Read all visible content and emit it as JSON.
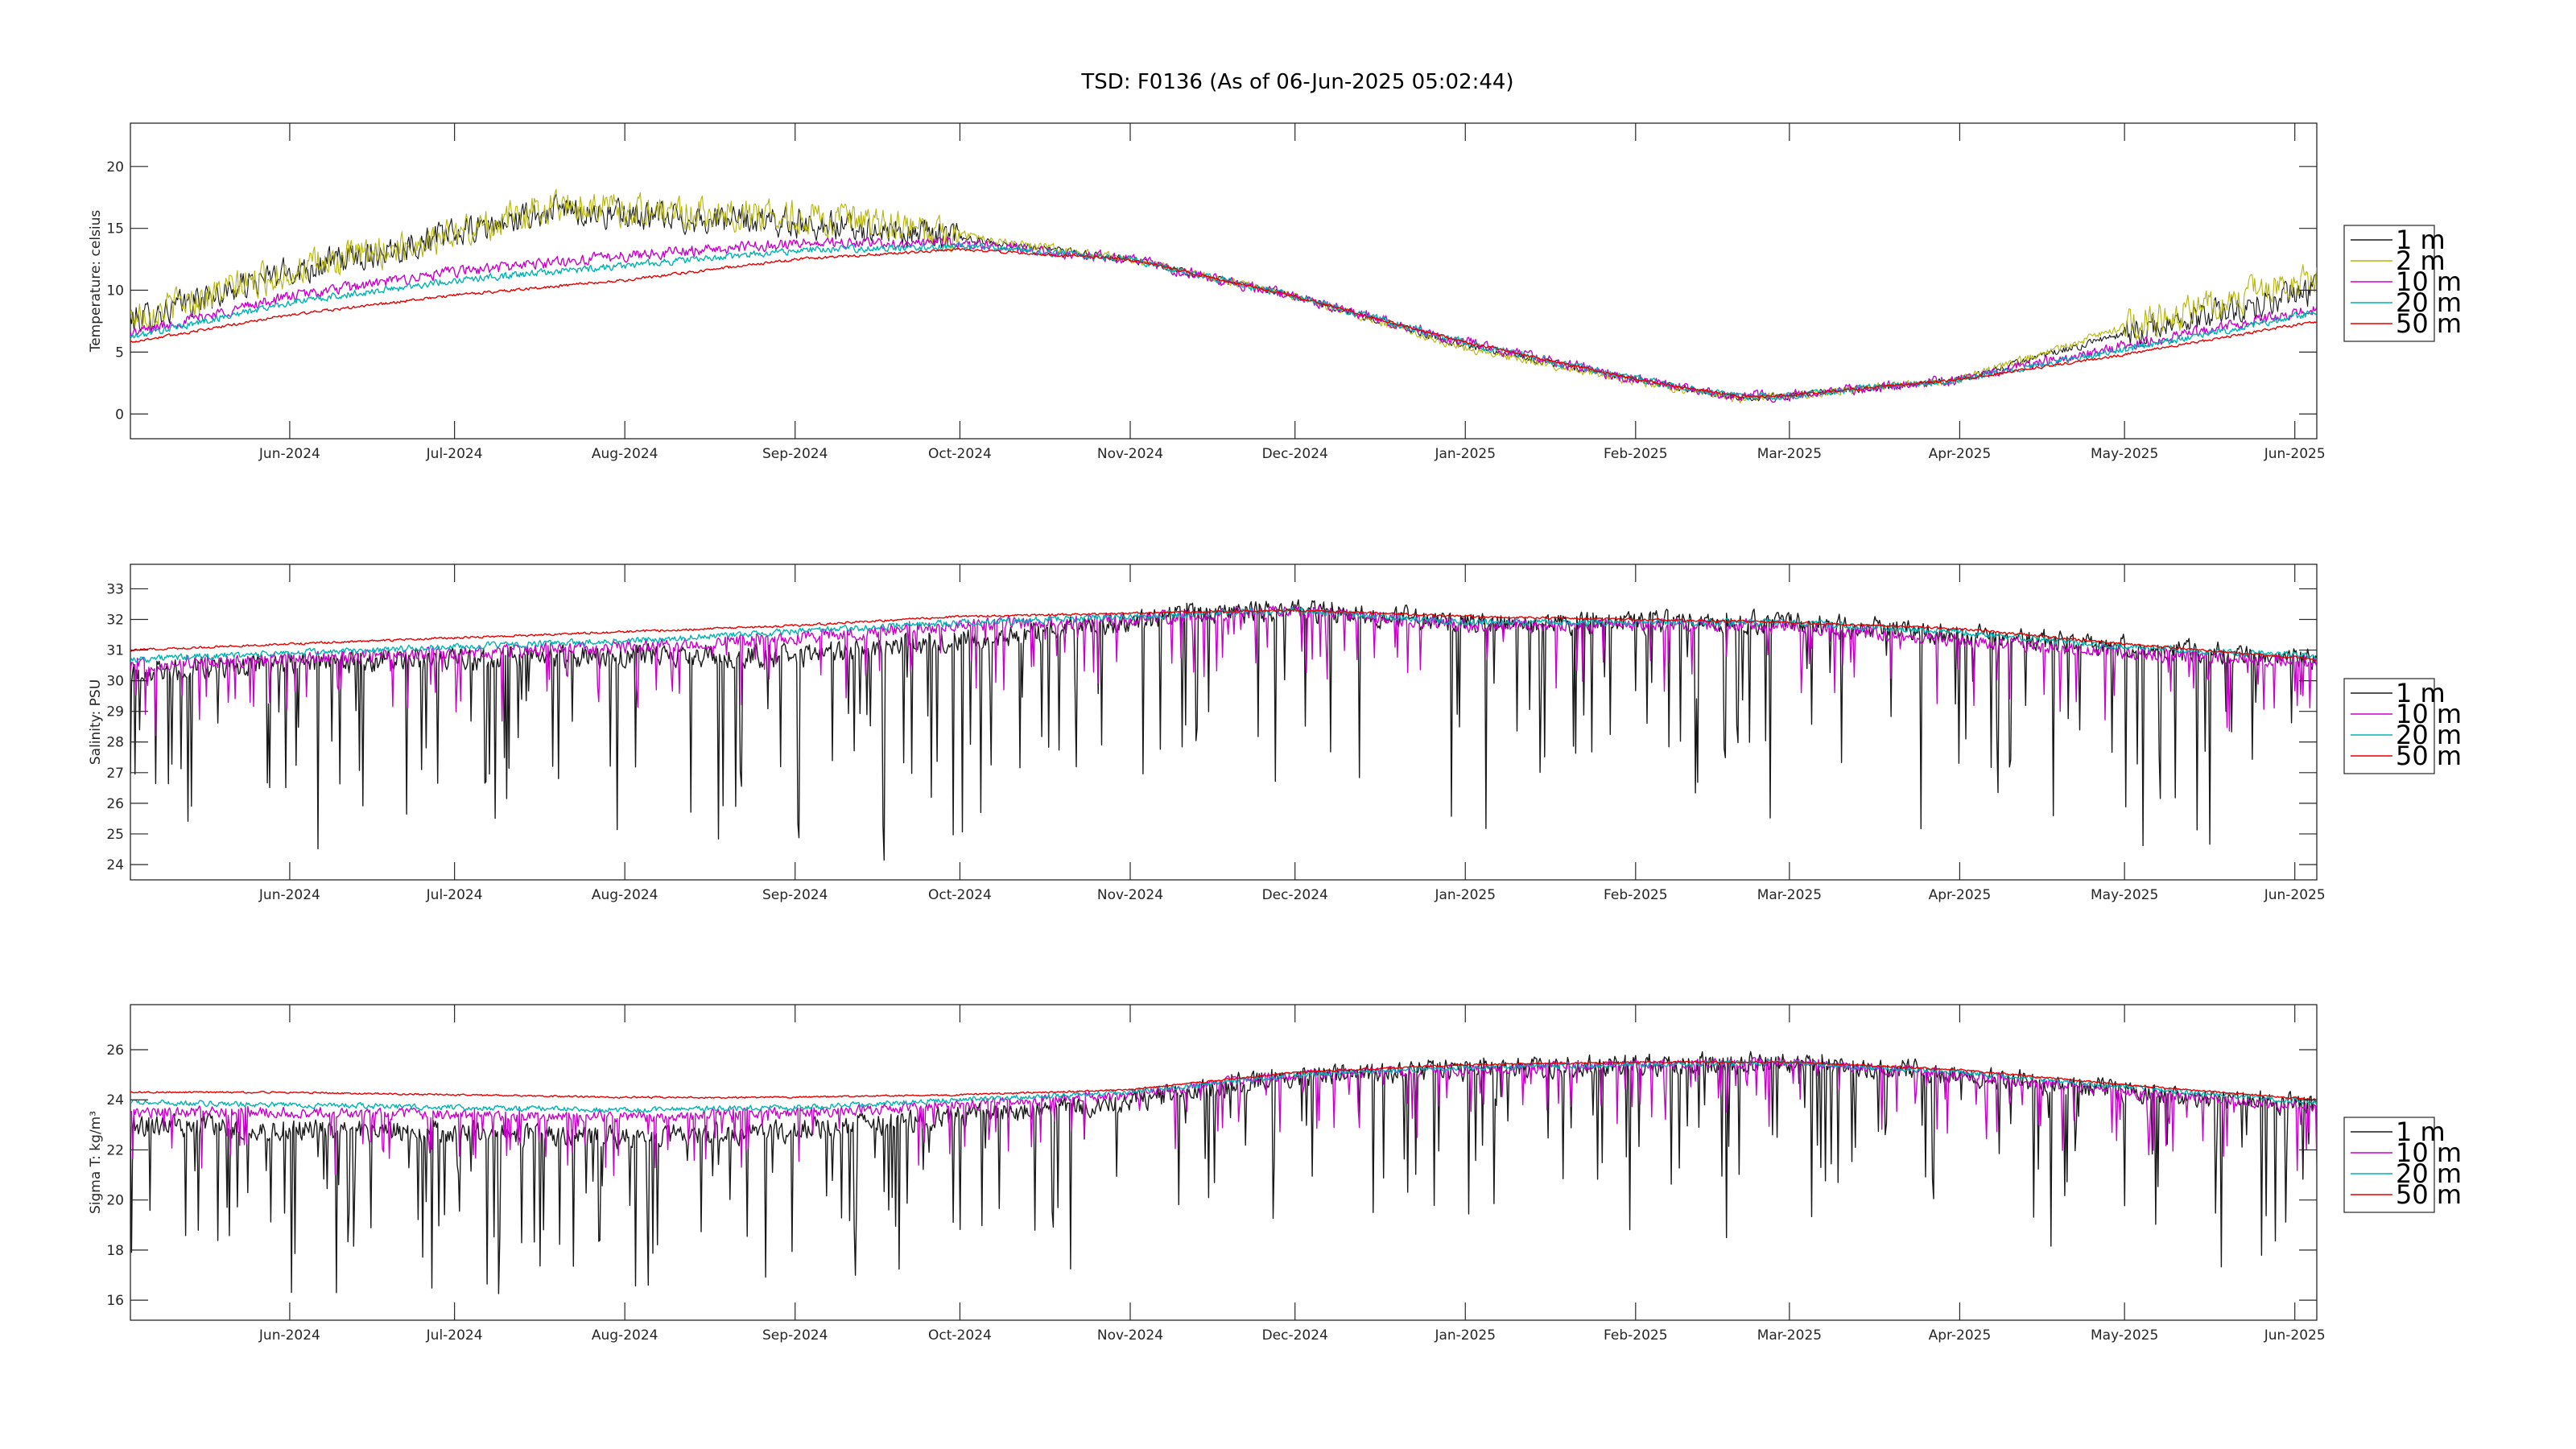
{
  "figure": {
    "title": "TSD: F0136 (As of 06-Jun-2025 05:02:44)"
  },
  "chart_data": [
    {
      "type": "line",
      "ylabel": "Temperature:  celsius",
      "ylim": [
        -2,
        23.5
      ],
      "yticks": [
        0,
        5,
        10,
        15,
        20
      ],
      "xlim": [
        "2024-05-03",
        "2025-06-05"
      ],
      "xtick_dates": [
        "2024-06-01",
        "2024-07-01",
        "2024-08-01",
        "2024-09-01",
        "2024-10-01",
        "2024-11-01",
        "2024-12-01",
        "2025-01-01",
        "2025-02-01",
        "2025-03-01",
        "2025-04-01",
        "2025-05-01",
        "2025-06-01"
      ],
      "xtick_labels": [
        "Jun-2024",
        "Jul-2024",
        "Aug-2024",
        "Sep-2024",
        "Oct-2024",
        "Nov-2024",
        "Dec-2024",
        "Jan-2025",
        "Feb-2025",
        "Mar-2025",
        "Apr-2025",
        "May-2025",
        "Jun-2025"
      ],
      "grid": false,
      "legend_placement": "outside-right",
      "series": [
        {
          "name": "1 m",
          "color": "#1a1a1a",
          "noise": 1.6,
          "dips": false,
          "x": [
            "2024-05-03",
            "2024-06-01",
            "2024-07-01",
            "2024-07-20",
            "2024-08-01",
            "2024-09-01",
            "2024-10-01",
            "2024-11-01",
            "2024-12-01",
            "2025-01-01",
            "2025-02-01",
            "2025-02-20",
            "2025-03-01",
            "2025-04-01",
            "2025-05-01",
            "2025-06-05"
          ],
          "y": [
            7.5,
            11.5,
            14.5,
            16.5,
            16,
            15.5,
            14.2,
            12.5,
            9.5,
            5.5,
            2.8,
            1.3,
            1.5,
            2.8,
            6.5,
            10
          ]
        },
        {
          "name": "2 m",
          "color": "#b5b50a",
          "noise": 1.8,
          "dips": false,
          "x": [
            "2024-05-03",
            "2024-06-01",
            "2024-07-01",
            "2024-07-20",
            "2024-08-01",
            "2024-09-01",
            "2024-10-01",
            "2024-11-01",
            "2024-12-01",
            "2025-01-01",
            "2025-02-01",
            "2025-02-20",
            "2025-03-01",
            "2025-04-01",
            "2025-05-01",
            "2025-06-05"
          ],
          "y": [
            7.8,
            11.5,
            14.5,
            17,
            16.5,
            16,
            14.5,
            12.5,
            9.5,
            5.3,
            2.6,
            1.2,
            1.5,
            2.8,
            7,
            11
          ]
        },
        {
          "name": "10 m",
          "color": "#cc00cc",
          "noise": 0.6,
          "dips": false,
          "x": [
            "2024-05-03",
            "2024-06-01",
            "2024-07-01",
            "2024-08-01",
            "2024-09-01",
            "2024-10-01",
            "2024-11-01",
            "2024-12-01",
            "2025-01-01",
            "2025-02-01",
            "2025-02-20",
            "2025-03-01",
            "2025-04-01",
            "2025-05-01",
            "2025-06-05"
          ],
          "y": [
            6.5,
            9.5,
            11.5,
            12.8,
            13.8,
            13.8,
            12.5,
            9.5,
            5.8,
            2.8,
            1.4,
            1.5,
            2.8,
            5.5,
            8.5
          ]
        },
        {
          "name": "20 m",
          "color": "#00b3b3",
          "noise": 0.4,
          "dips": false,
          "x": [
            "2024-05-03",
            "2024-06-01",
            "2024-07-01",
            "2024-08-01",
            "2024-09-01",
            "2024-10-01",
            "2024-11-01",
            "2024-12-01",
            "2025-01-01",
            "2025-02-01",
            "2025-02-20",
            "2025-03-01",
            "2025-04-01",
            "2025-05-01",
            "2025-06-05"
          ],
          "y": [
            6.2,
            9,
            10.8,
            12,
            13.2,
            13.6,
            12.5,
            9.5,
            5.8,
            2.8,
            1.4,
            1.5,
            2.8,
            5.2,
            8.2
          ]
        },
        {
          "name": "50 m",
          "color": "#e60000",
          "noise": 0.15,
          "dips": false,
          "x": [
            "2024-05-03",
            "2024-06-01",
            "2024-07-01",
            "2024-08-01",
            "2024-09-01",
            "2024-10-01",
            "2024-11-01",
            "2024-12-01",
            "2025-01-01",
            "2025-02-01",
            "2025-02-20",
            "2025-03-01",
            "2025-04-01",
            "2025-05-01",
            "2025-06-05"
          ],
          "y": [
            5.8,
            8,
            9.6,
            10.8,
            12.5,
            13.3,
            12.5,
            9.5,
            5.8,
            2.8,
            1.4,
            1.5,
            2.8,
            4.8,
            7.5
          ]
        }
      ]
    },
    {
      "type": "line",
      "ylabel": "Salinity:  PSU",
      "ylim": [
        23.5,
        33.8
      ],
      "yticks": [
        24,
        25,
        26,
        27,
        28,
        29,
        30,
        31,
        32,
        33
      ],
      "xlim": [
        "2024-05-03",
        "2025-06-05"
      ],
      "xtick_dates": [
        "2024-06-01",
        "2024-07-01",
        "2024-08-01",
        "2024-09-01",
        "2024-10-01",
        "2024-11-01",
        "2024-12-01",
        "2025-01-01",
        "2025-02-01",
        "2025-03-01",
        "2025-04-01",
        "2025-05-01",
        "2025-06-01"
      ],
      "xtick_labels": [
        "Jun-2024",
        "Jul-2024",
        "Aug-2024",
        "Sep-2024",
        "Oct-2024",
        "Nov-2024",
        "Dec-2024",
        "Jan-2025",
        "Feb-2025",
        "Mar-2025",
        "Apr-2025",
        "May-2025",
        "Jun-2025"
      ],
      "grid": false,
      "legend_placement": "outside-right",
      "series": [
        {
          "name": "1 m",
          "color": "#1a1a1a",
          "noise": 0.5,
          "dips": true,
          "dip_scale": 3.5,
          "x": [
            "2024-05-03",
            "2024-06-01",
            "2024-07-01",
            "2024-08-01",
            "2024-09-01",
            "2024-10-01",
            "2024-10-25",
            "2024-11-10",
            "2024-12-01",
            "2025-01-01",
            "2025-02-01",
            "2025-03-01",
            "2025-04-01",
            "2025-05-01",
            "2025-06-05"
          ],
          "y": [
            30.3,
            30.5,
            30.7,
            30.8,
            30.8,
            31.3,
            31.8,
            32.1,
            32.3,
            31.9,
            31.9,
            31.9,
            31.5,
            31.1,
            30.7
          ]
        },
        {
          "name": "10 m",
          "color": "#cc00cc",
          "noise": 0.3,
          "dips": true,
          "dip_scale": 1.2,
          "x": [
            "2024-05-03",
            "2024-06-01",
            "2024-07-01",
            "2024-08-01",
            "2024-09-01",
            "2024-10-01",
            "2024-11-01",
            "2024-12-01",
            "2025-01-01",
            "2025-02-01",
            "2025-03-01",
            "2025-04-01",
            "2025-05-01",
            "2025-06-05"
          ],
          "y": [
            30.5,
            30.7,
            30.9,
            31.1,
            31.4,
            31.8,
            32.0,
            32.3,
            31.8,
            31.8,
            31.8,
            31.3,
            30.9,
            30.6
          ]
        },
        {
          "name": "20 m",
          "color": "#00b3b3",
          "noise": 0.15,
          "dips": false,
          "x": [
            "2024-05-03",
            "2024-06-01",
            "2024-07-01",
            "2024-08-01",
            "2024-09-01",
            "2024-10-01",
            "2024-11-01",
            "2024-12-01",
            "2025-01-01",
            "2025-02-01",
            "2025-03-01",
            "2025-04-01",
            "2025-05-01",
            "2025-06-05"
          ],
          "y": [
            30.7,
            30.9,
            31.1,
            31.3,
            31.6,
            31.9,
            32.1,
            32.3,
            31.9,
            31.9,
            31.9,
            31.6,
            31.1,
            30.8
          ]
        },
        {
          "name": "50 m",
          "color": "#e60000",
          "noise": 0.05,
          "dips": false,
          "x": [
            "2024-05-03",
            "2024-06-01",
            "2024-07-01",
            "2024-08-01",
            "2024-09-01",
            "2024-10-01",
            "2024-11-01",
            "2024-12-01",
            "2025-01-01",
            "2025-02-01",
            "2025-03-01",
            "2025-04-01",
            "2025-05-01",
            "2025-06-05"
          ],
          "y": [
            31.0,
            31.2,
            31.4,
            31.6,
            31.8,
            32.1,
            32.2,
            32.3,
            32.1,
            32.0,
            31.9,
            31.7,
            31.2,
            30.7
          ]
        }
      ]
    },
    {
      "type": "line",
      "ylabel": "Sigma T:  kg/m³",
      "ylim": [
        15.2,
        27.8
      ],
      "yticks": [
        16,
        18,
        20,
        22,
        24,
        26
      ],
      "xlim": [
        "2024-05-03",
        "2025-06-05"
      ],
      "xtick_dates": [
        "2024-06-01",
        "2024-07-01",
        "2024-08-01",
        "2024-09-01",
        "2024-10-01",
        "2024-11-01",
        "2024-12-01",
        "2025-01-01",
        "2025-02-01",
        "2025-03-01",
        "2025-04-01",
        "2025-05-01",
        "2025-06-01"
      ],
      "xtick_labels": [
        "Jun-2024",
        "Jul-2024",
        "Aug-2024",
        "Sep-2024",
        "Oct-2024",
        "Nov-2024",
        "Dec-2024",
        "Jan-2025",
        "Feb-2025",
        "Mar-2025",
        "Apr-2025",
        "May-2025",
        "Jun-2025"
      ],
      "grid": false,
      "legend_placement": "outside-right",
      "series": [
        {
          "name": "1 m",
          "color": "#1a1a1a",
          "noise": 0.6,
          "dips": true,
          "dip_scale": 3.5,
          "x": [
            "2024-05-03",
            "2024-06-01",
            "2024-07-01",
            "2024-08-01",
            "2024-09-01",
            "2024-10-01",
            "2024-10-25",
            "2024-11-10",
            "2024-12-01",
            "2025-01-01",
            "2025-02-01",
            "2025-03-01",
            "2025-04-01",
            "2025-05-01",
            "2025-06-05"
          ],
          "y": [
            23.0,
            22.8,
            22.7,
            22.5,
            22.8,
            23.3,
            23.8,
            24.2,
            25.0,
            25.2,
            25.4,
            25.5,
            25.0,
            24.3,
            23.8
          ]
        },
        {
          "name": "10 m",
          "color": "#cc00cc",
          "noise": 0.3,
          "dips": true,
          "dip_scale": 1.3,
          "x": [
            "2024-05-03",
            "2024-06-01",
            "2024-07-01",
            "2024-08-01",
            "2024-09-01",
            "2024-10-01",
            "2024-11-01",
            "2024-12-01",
            "2025-01-01",
            "2025-02-01",
            "2025-03-01",
            "2025-04-01",
            "2025-05-01",
            "2025-06-05"
          ],
          "y": [
            23.5,
            23.5,
            23.4,
            23.3,
            23.5,
            23.8,
            24.2,
            25.0,
            25.2,
            25.4,
            25.5,
            25.0,
            24.3,
            23.7
          ]
        },
        {
          "name": "20 m",
          "color": "#00b3b3",
          "noise": 0.15,
          "dips": false,
          "x": [
            "2024-05-03",
            "2024-06-01",
            "2024-07-01",
            "2024-08-01",
            "2024-09-01",
            "2024-10-01",
            "2024-11-01",
            "2024-12-01",
            "2025-01-01",
            "2025-02-01",
            "2025-03-01",
            "2025-04-01",
            "2025-05-01",
            "2025-06-05"
          ],
          "y": [
            23.9,
            23.8,
            23.7,
            23.6,
            23.7,
            24.0,
            24.3,
            25.0,
            25.3,
            25.4,
            25.5,
            25.1,
            24.5,
            23.9
          ]
        },
        {
          "name": "50 m",
          "color": "#e60000",
          "noise": 0.05,
          "dips": false,
          "x": [
            "2024-05-03",
            "2024-06-01",
            "2024-07-01",
            "2024-08-01",
            "2024-09-01",
            "2024-10-01",
            "2024-11-01",
            "2024-12-01",
            "2025-01-01",
            "2025-02-01",
            "2025-03-01",
            "2025-04-01",
            "2025-05-01",
            "2025-06-05"
          ],
          "y": [
            24.3,
            24.3,
            24.2,
            24.1,
            24.1,
            24.2,
            24.4,
            25.1,
            25.4,
            25.5,
            25.5,
            25.2,
            24.6,
            24.0
          ]
        }
      ]
    }
  ]
}
